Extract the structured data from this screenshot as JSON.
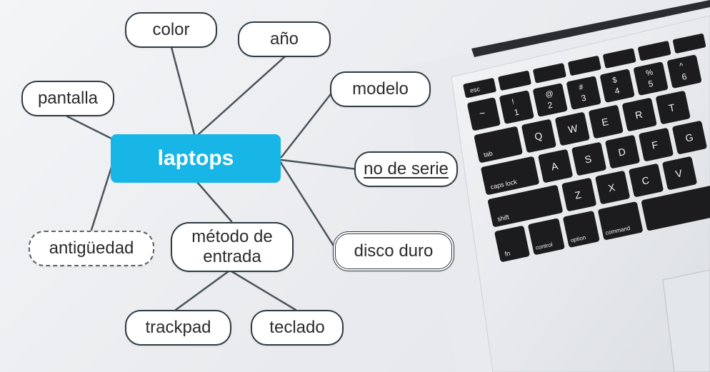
{
  "mindmap": {
    "center": "laptops",
    "nodes": {
      "color": "color",
      "ano": "año",
      "modelo": "modelo",
      "pantalla": "pantalla",
      "no_de_serie": "no de serie",
      "disco_duro": "disco duro",
      "antiguedad": "antigüedad",
      "metodo_de_entrada_line1": "método de",
      "metodo_de_entrada_line2": "entrada",
      "trackpad": "trackpad",
      "teclado": "teclado"
    }
  },
  "keyboard": {
    "esc": "esc",
    "tab": "tab",
    "caps_lock": "caps lock",
    "shift": "shift",
    "fn": "fn",
    "control": "control",
    "option": "option",
    "command": "command",
    "letters_row1": [
      "Q",
      "W",
      "E",
      "R",
      "T"
    ],
    "letters_row2": [
      "A",
      "S",
      "D",
      "F",
      "G"
    ],
    "letters_row3": [
      "Z",
      "X",
      "C",
      "V"
    ],
    "numbers": [
      "1",
      "2",
      "3",
      "4",
      "5",
      "6"
    ],
    "number_symbols": [
      "!",
      "@",
      "#",
      "$",
      "%",
      "^"
    ],
    "backtick": "~"
  },
  "colors": {
    "center_fill": "#17b6e6",
    "node_border": "#2f3a42",
    "edge": "#4a545b",
    "key": "#1c1c1e"
  }
}
